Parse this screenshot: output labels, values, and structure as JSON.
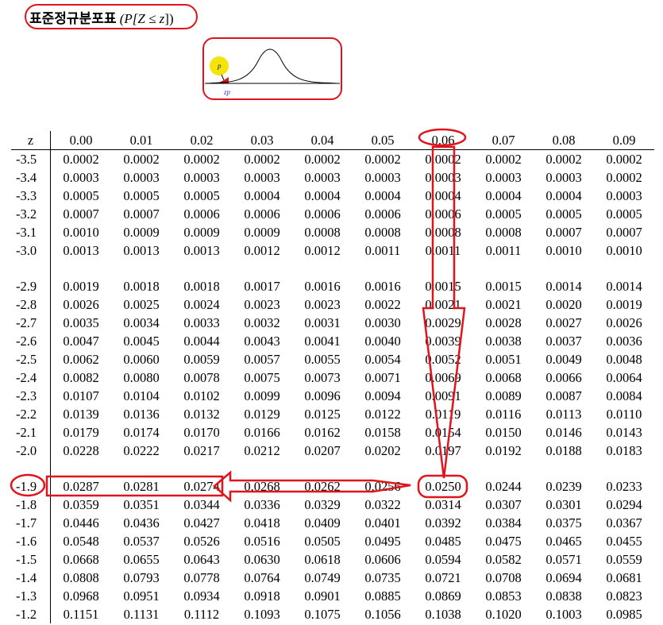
{
  "title": {
    "korean": "표준정규분포표",
    "math_open": "(P[Z ≤ z",
    "math_close": "])"
  },
  "curve_labels": {
    "p": "p",
    "zp": "zp"
  },
  "colors": {
    "highlight": "#e0141c",
    "marker": "#f4e40c"
  },
  "table": {
    "header_z": "z",
    "columns": [
      "0.00",
      "0.01",
      "0.02",
      "0.03",
      "0.04",
      "0.05",
      "0.06",
      "0.07",
      "0.08",
      "0.09"
    ],
    "rows": [
      {
        "z": "-3.5",
        "v": [
          "0.0002",
          "0.0002",
          "0.0002",
          "0.0002",
          "0.0002",
          "0.0002",
          "0.0002",
          "0.0002",
          "0.0002",
          "0.0002"
        ]
      },
      {
        "z": "-3.4",
        "v": [
          "0.0003",
          "0.0003",
          "0.0003",
          "0.0003",
          "0.0003",
          "0.0003",
          "0.0003",
          "0.0003",
          "0.0003",
          "0.0002"
        ]
      },
      {
        "z": "-3.3",
        "v": [
          "0.0005",
          "0.0005",
          "0.0005",
          "0.0004",
          "0.0004",
          "0.0004",
          "0.0004",
          "0.0004",
          "0.0004",
          "0.0003"
        ]
      },
      {
        "z": "-3.2",
        "v": [
          "0.0007",
          "0.0007",
          "0.0006",
          "0.0006",
          "0.0006",
          "0.0006",
          "0.0006",
          "0.0005",
          "0.0005",
          "0.0005"
        ]
      },
      {
        "z": "-3.1",
        "v": [
          "0.0010",
          "0.0009",
          "0.0009",
          "0.0009",
          "0.0008",
          "0.0008",
          "0.0008",
          "0.0008",
          "0.0007",
          "0.0007"
        ]
      },
      {
        "z": "-3.0",
        "v": [
          "0.0013",
          "0.0013",
          "0.0013",
          "0.0012",
          "0.0012",
          "0.0011",
          "0.0011",
          "0.0011",
          "0.0010",
          "0.0010"
        ]
      },
      {
        "gap": true
      },
      {
        "z": "-2.9",
        "v": [
          "0.0019",
          "0.0018",
          "0.0018",
          "0.0017",
          "0.0016",
          "0.0016",
          "0.0015",
          "0.0015",
          "0.0014",
          "0.0014"
        ]
      },
      {
        "z": "-2.8",
        "v": [
          "0.0026",
          "0.0025",
          "0.0024",
          "0.0023",
          "0.0023",
          "0.0022",
          "0.0021",
          "0.0021",
          "0.0020",
          "0.0019"
        ]
      },
      {
        "z": "-2.7",
        "v": [
          "0.0035",
          "0.0034",
          "0.0033",
          "0.0032",
          "0.0031",
          "0.0030",
          "0.0029",
          "0.0028",
          "0.0027",
          "0.0026"
        ]
      },
      {
        "z": "-2.6",
        "v": [
          "0.0047",
          "0.0045",
          "0.0044",
          "0.0043",
          "0.0041",
          "0.0040",
          "0.0039",
          "0.0038",
          "0.0037",
          "0.0036"
        ]
      },
      {
        "z": "-2.5",
        "v": [
          "0.0062",
          "0.0060",
          "0.0059",
          "0.0057",
          "0.0055",
          "0.0054",
          "0.0052",
          "0.0051",
          "0.0049",
          "0.0048"
        ]
      },
      {
        "z": "-2.4",
        "v": [
          "0.0082",
          "0.0080",
          "0.0078",
          "0.0075",
          "0.0073",
          "0.0071",
          "0.0069",
          "0.0068",
          "0.0066",
          "0.0064"
        ]
      },
      {
        "z": "-2.3",
        "v": [
          "0.0107",
          "0.0104",
          "0.0102",
          "0.0099",
          "0.0096",
          "0.0094",
          "0.0091",
          "0.0089",
          "0.0087",
          "0.0084"
        ]
      },
      {
        "z": "-2.2",
        "v": [
          "0.0139",
          "0.0136",
          "0.0132",
          "0.0129",
          "0.0125",
          "0.0122",
          "0.0119",
          "0.0116",
          "0.0113",
          "0.0110"
        ]
      },
      {
        "z": "-2.1",
        "v": [
          "0.0179",
          "0.0174",
          "0.0170",
          "0.0166",
          "0.0162",
          "0.0158",
          "0.0154",
          "0.0150",
          "0.0146",
          "0.0143"
        ]
      },
      {
        "z": "-2.0",
        "v": [
          "0.0228",
          "0.0222",
          "0.0217",
          "0.0212",
          "0.0207",
          "0.0202",
          "0.0197",
          "0.0192",
          "0.0188",
          "0.0183"
        ]
      },
      {
        "gap": true
      },
      {
        "z": "-1.9",
        "v": [
          "0.0287",
          "0.0281",
          "0.0274",
          "0.0268",
          "0.0262",
          "0.0256",
          "0.0250",
          "0.0244",
          "0.0239",
          "0.0233"
        ]
      },
      {
        "z": "-1.8",
        "v": [
          "0.0359",
          "0.0351",
          "0.0344",
          "0.0336",
          "0.0329",
          "0.0322",
          "0.0314",
          "0.0307",
          "0.0301",
          "0.0294"
        ]
      },
      {
        "z": "-1.7",
        "v": [
          "0.0446",
          "0.0436",
          "0.0427",
          "0.0418",
          "0.0409",
          "0.0401",
          "0.0392",
          "0.0384",
          "0.0375",
          "0.0367"
        ]
      },
      {
        "z": "-1.6",
        "v": [
          "0.0548",
          "0.0537",
          "0.0526",
          "0.0516",
          "0.0505",
          "0.0495",
          "0.0485",
          "0.0475",
          "0.0465",
          "0.0455"
        ]
      },
      {
        "z": "-1.5",
        "v": [
          "0.0668",
          "0.0655",
          "0.0643",
          "0.0630",
          "0.0618",
          "0.0606",
          "0.0594",
          "0.0582",
          "0.0571",
          "0.0559"
        ]
      },
      {
        "z": "-1.4",
        "v": [
          "0.0808",
          "0.0793",
          "0.0778",
          "0.0764",
          "0.0749",
          "0.0735",
          "0.0721",
          "0.0708",
          "0.0694",
          "0.0681"
        ]
      },
      {
        "z": "-1.3",
        "v": [
          "0.0968",
          "0.0951",
          "0.0934",
          "0.0918",
          "0.0901",
          "0.0885",
          "0.0869",
          "0.0853",
          "0.0838",
          "0.0823"
        ]
      },
      {
        "z": "-1.2",
        "v": [
          "0.1151",
          "0.1131",
          "0.1112",
          "0.1093",
          "0.1075",
          "0.1056",
          "0.1038",
          "0.1020",
          "0.1003",
          "0.0985"
        ]
      }
    ]
  },
  "annotation": {
    "selected_row_z": "-1.9",
    "selected_column": "0.06",
    "result": "0.0250"
  }
}
